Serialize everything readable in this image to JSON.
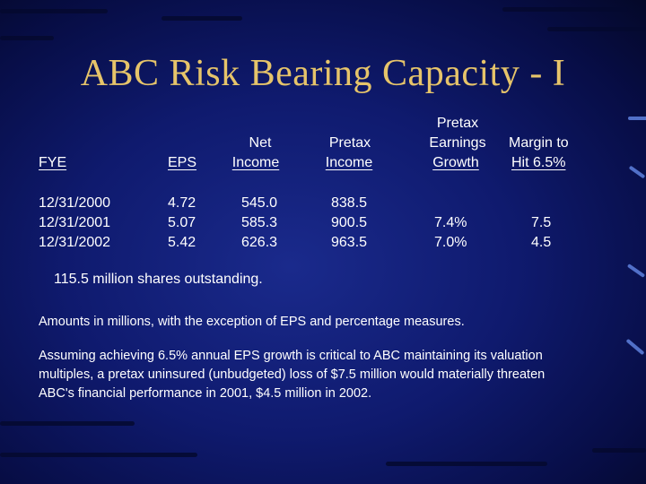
{
  "slide": {
    "title": "ABC Risk Bearing Capacity - I"
  },
  "table": {
    "headers": {
      "fye": "FYE",
      "eps": "EPS",
      "net_income_l1": "Net",
      "net_income_l2": "Income",
      "pretax_income_l1": "Pretax",
      "pretax_income_l2": "Income",
      "pretax_growth_l1": "Pretax",
      "pretax_growth_l2": "Earnings",
      "pretax_growth_l3": "Growth",
      "margin_l1": "Margin to",
      "margin_l2": "Hit 6.5%"
    },
    "rows": [
      {
        "fye": "12/31/2000",
        "eps": "4.72",
        "net_income": "545.0",
        "pretax_income": "838.5",
        "growth": "",
        "margin": ""
      },
      {
        "fye": "12/31/2001",
        "eps": "5.07",
        "net_income": "585.3",
        "pretax_income": "900.5",
        "growth": "7.4%",
        "margin": "7.5"
      },
      {
        "fye": "12/31/2002",
        "eps": "5.42",
        "net_income": "626.3",
        "pretax_income": "963.5",
        "growth": "7.0%",
        "margin": "4.5"
      }
    ]
  },
  "notes": {
    "shares": "115.5 million shares outstanding.",
    "amounts": "Amounts in millions, with the exception of EPS and percentage measures.",
    "assumption_l1": "Assuming achieving 6.5% annual EPS growth is critical to ABC maintaining its valuation",
    "assumption_l2": "multiples, a pretax uninsured (unbudgeted) loss of $7.5 million would materially threaten",
    "assumption_l3": "ABC's financial performance in 2001, $4.5 million in 2002."
  },
  "colors": {
    "background": "#0f1a6e",
    "title": "#e6c46a",
    "text": "#ffffff"
  }
}
